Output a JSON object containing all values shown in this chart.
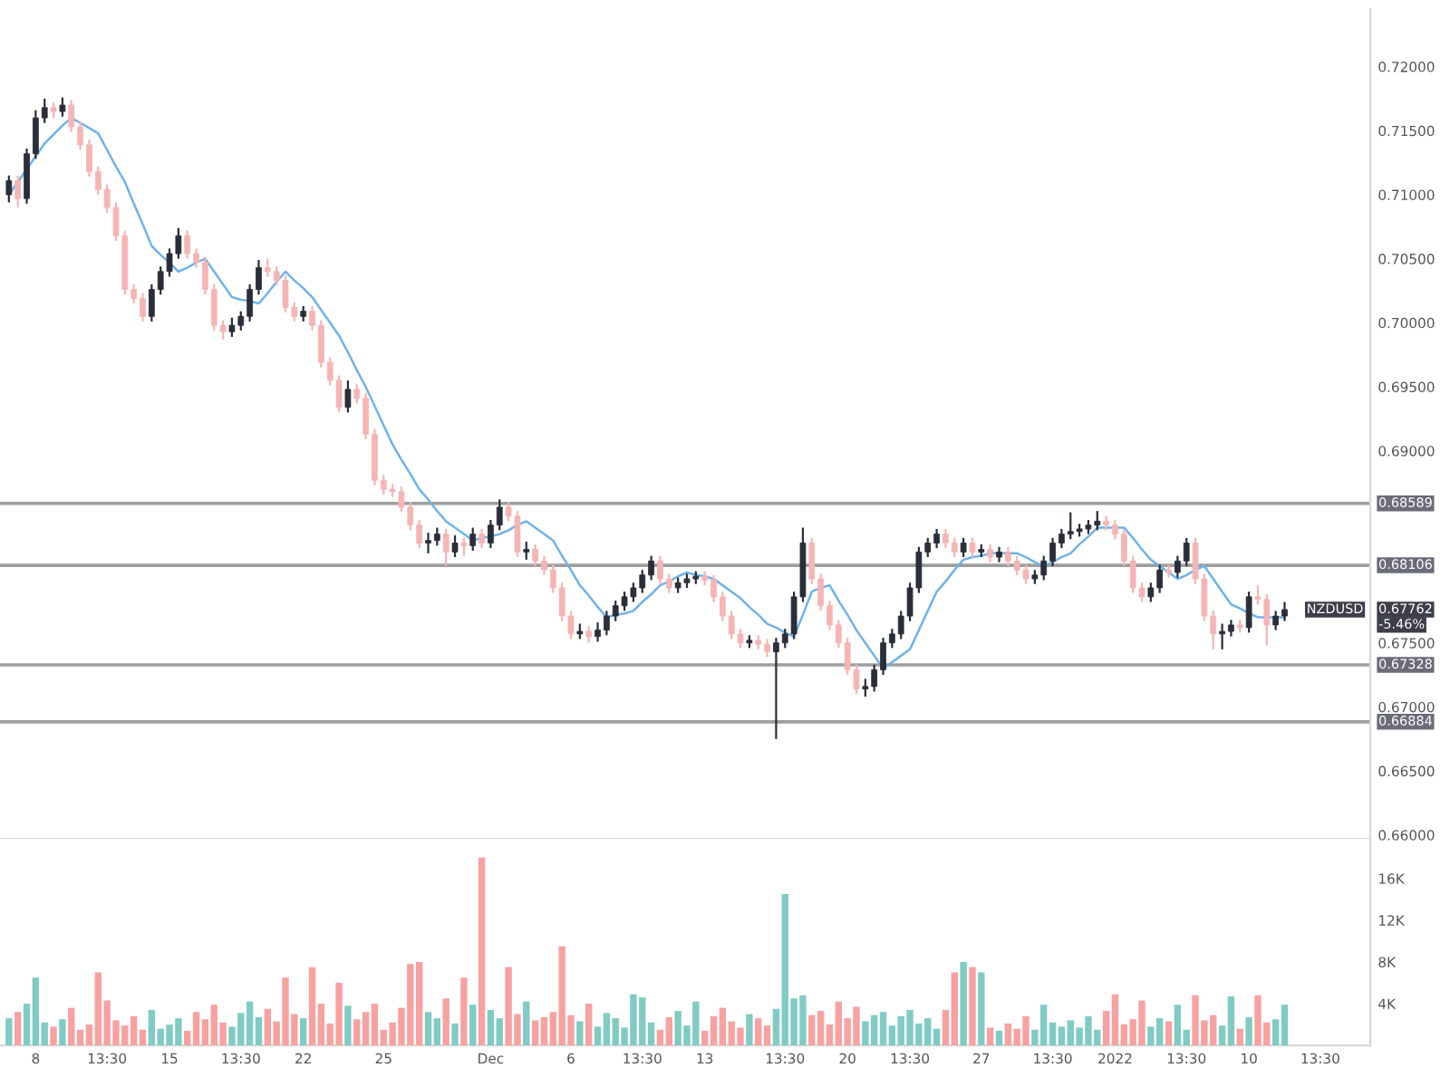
{
  "chart_data": [
    {
      "type": "candlestick",
      "categories": [
        null,
        null,
        null,
        null,
        null,
        null,
        null,
        null,
        null,
        null,
        null,
        null,
        null,
        null,
        null,
        null,
        null,
        null,
        null,
        null,
        null,
        null,
        null,
        null,
        null,
        null,
        null,
        null,
        null,
        null,
        null,
        null,
        null,
        null,
        null,
        null,
        null,
        null,
        null,
        null,
        null,
        null,
        null,
        null,
        null,
        null,
        null,
        null,
        null,
        null,
        null,
        null,
        null,
        null,
        null,
        null,
        null,
        null,
        null,
        null,
        null,
        null,
        null,
        null,
        null,
        null,
        null,
        null,
        null,
        null,
        null,
        null,
        null,
        null,
        null,
        null,
        null,
        null,
        null,
        null,
        null,
        null,
        null,
        null,
        null,
        null,
        null,
        null,
        null,
        null,
        null,
        null,
        null,
        null,
        null,
        null,
        null,
        null,
        null,
        null,
        null,
        null,
        null,
        null,
        null,
        null,
        null,
        null,
        null,
        null,
        null,
        null,
        null,
        null,
        null,
        null,
        null,
        null,
        null,
        null,
        null,
        null,
        null,
        null,
        null,
        null,
        null,
        null,
        null,
        null,
        null,
        null,
        null,
        null,
        null,
        null,
        null,
        null,
        null,
        null,
        null,
        null,
        null,
        null,
        null,
        null,
        null,
        null
      ],
      "ohlc": [
        [
          0.71,
          0.7115,
          0.7094,
          0.7111
        ],
        [
          0.7111,
          0.7115,
          0.709,
          0.7097
        ],
        [
          0.7097,
          0.7136,
          0.7093,
          0.7132
        ],
        [
          0.7132,
          0.7166,
          0.7128,
          0.716
        ],
        [
          0.716,
          0.7175,
          0.7156,
          0.7168
        ],
        [
          0.7168,
          0.7172,
          0.716,
          0.7165
        ],
        [
          0.7165,
          0.7176,
          0.7161,
          0.717
        ],
        [
          0.717,
          0.7174,
          0.7149,
          0.7153
        ],
        [
          0.7153,
          0.7157,
          0.7135,
          0.7139
        ],
        [
          0.7139,
          0.7143,
          0.7114,
          0.7118
        ],
        [
          0.7118,
          0.7122,
          0.71,
          0.7104
        ],
        [
          0.7104,
          0.7108,
          0.7086,
          0.709
        ],
        [
          0.709,
          0.7094,
          0.7064,
          0.7068
        ],
        [
          0.7068,
          0.7072,
          0.7022,
          0.7026
        ],
        [
          0.7026,
          0.703,
          0.7015,
          0.7019
        ],
        [
          0.7019,
          0.7023,
          0.7001,
          0.7005
        ],
        [
          0.7005,
          0.703,
          0.7001,
          0.7026
        ],
        [
          0.7026,
          0.7044,
          0.7022,
          0.704
        ],
        [
          0.704,
          0.7058,
          0.7036,
          0.7054
        ],
        [
          0.7054,
          0.7074,
          0.705,
          0.7068
        ],
        [
          0.7068,
          0.7072,
          0.705,
          0.7054
        ],
        [
          0.7054,
          0.7058,
          0.7043,
          0.7047
        ],
        [
          0.7047,
          0.7051,
          0.7022,
          0.7026
        ],
        [
          0.7026,
          0.703,
          0.6994,
          0.6998
        ],
        [
          0.6998,
          0.7002,
          0.6987,
          0.6993
        ],
        [
          0.6993,
          0.7004,
          0.6989,
          0.6998
        ],
        [
          0.6998,
          0.7009,
          0.6994,
          0.7005
        ],
        [
          0.7005,
          0.703,
          0.7001,
          0.7026
        ],
        [
          0.7026,
          0.7049,
          0.7022,
          0.7043
        ],
        [
          0.7043,
          0.705,
          0.7036,
          0.704
        ],
        [
          0.704,
          0.7044,
          0.7029,
          0.7033
        ],
        [
          0.7033,
          0.7037,
          0.7008,
          0.7012
        ],
        [
          0.7012,
          0.7016,
          0.7001,
          0.7005
        ],
        [
          0.7005,
          0.7013,
          0.7001,
          0.7009
        ],
        [
          0.7009,
          0.7013,
          0.6994,
          0.6998
        ],
        [
          0.6998,
          0.7002,
          0.6965,
          0.6969
        ],
        [
          0.6969,
          0.6973,
          0.6951,
          0.6955
        ],
        [
          0.6955,
          0.6959,
          0.693,
          0.6934
        ],
        [
          0.6934,
          0.6955,
          0.693,
          0.6948
        ],
        [
          0.6948,
          0.6952,
          0.6937,
          0.6941
        ],
        [
          0.6941,
          0.6945,
          0.6909,
          0.6913
        ],
        [
          0.6913,
          0.6917,
          0.6873,
          0.6877
        ],
        [
          0.6877,
          0.6881,
          0.6866,
          0.687
        ],
        [
          0.687,
          0.6874,
          0.6864,
          0.6868
        ],
        [
          0.6868,
          0.6872,
          0.6852,
          0.6856
        ],
        [
          0.6856,
          0.686,
          0.6838,
          0.6842
        ],
        [
          0.6842,
          0.6846,
          0.6824,
          0.6828
        ],
        [
          0.6828,
          0.6836,
          0.682,
          0.683
        ],
        [
          0.683,
          0.684,
          0.6826,
          0.6835
        ],
        [
          0.6835,
          0.6839,
          0.681,
          0.6821
        ],
        [
          0.6821,
          0.6834,
          0.6817,
          0.6828
        ],
        [
          0.6828,
          0.6832,
          0.6818,
          0.6826
        ],
        [
          0.6826,
          0.684,
          0.6822,
          0.6835
        ],
        [
          0.6835,
          0.6839,
          0.6824,
          0.6828
        ],
        [
          0.6828,
          0.6846,
          0.6824,
          0.6842
        ],
        [
          0.6842,
          0.6862,
          0.6838,
          0.6856
        ],
        [
          0.6856,
          0.686,
          0.6845,
          0.6849
        ],
        [
          0.6849,
          0.6853,
          0.6817,
          0.6821
        ],
        [
          0.6821,
          0.6829,
          0.6815,
          0.6823
        ],
        [
          0.6823,
          0.6827,
          0.681,
          0.6814
        ],
        [
          0.6814,
          0.6818,
          0.6803,
          0.6807
        ],
        [
          0.6807,
          0.6811,
          0.6789,
          0.6793
        ],
        [
          0.6793,
          0.6797,
          0.6767,
          0.6771
        ],
        [
          0.6771,
          0.6775,
          0.6753,
          0.6757
        ],
        [
          0.6757,
          0.6765,
          0.6753,
          0.6759
        ],
        [
          0.6759,
          0.6763,
          0.675,
          0.6755
        ],
        [
          0.6755,
          0.6766,
          0.6751,
          0.676
        ],
        [
          0.676,
          0.6775,
          0.6756,
          0.6771
        ],
        [
          0.6771,
          0.6783,
          0.6767,
          0.6779
        ],
        [
          0.6779,
          0.679,
          0.6775,
          0.6786
        ],
        [
          0.6786,
          0.6797,
          0.6782,
          0.6793
        ],
        [
          0.6793,
          0.6807,
          0.6789,
          0.6803
        ],
        [
          0.6803,
          0.6818,
          0.6799,
          0.6814
        ],
        [
          0.6814,
          0.6818,
          0.6796,
          0.68
        ],
        [
          0.68,
          0.6804,
          0.6789,
          0.6793
        ],
        [
          0.6793,
          0.6801,
          0.6789,
          0.6797
        ],
        [
          0.6797,
          0.6804,
          0.6793,
          0.68
        ],
        [
          0.68,
          0.6806,
          0.6796,
          0.6802
        ],
        [
          0.6802,
          0.6806,
          0.6795,
          0.6799
        ],
        [
          0.6799,
          0.6803,
          0.6782,
          0.6786
        ],
        [
          0.6786,
          0.679,
          0.6767,
          0.6771
        ],
        [
          0.6771,
          0.6775,
          0.6753,
          0.6757
        ],
        [
          0.6757,
          0.6761,
          0.6746,
          0.675
        ],
        [
          0.675,
          0.6756,
          0.6746,
          0.6752
        ],
        [
          0.6752,
          0.6756,
          0.6745,
          0.6749
        ],
        [
          0.6749,
          0.6753,
          0.6739,
          0.6743
        ],
        [
          0.6743,
          0.6754,
          0.6675,
          0.675
        ],
        [
          0.675,
          0.6761,
          0.6746,
          0.6757
        ],
        [
          0.6757,
          0.679,
          0.6753,
          0.6786
        ],
        [
          0.6786,
          0.684,
          0.6782,
          0.6828
        ],
        [
          0.6828,
          0.6832,
          0.6796,
          0.68
        ],
        [
          0.68,
          0.6804,
          0.6775,
          0.6779
        ],
        [
          0.6779,
          0.6783,
          0.676,
          0.6764
        ],
        [
          0.6764,
          0.6768,
          0.6746,
          0.675
        ],
        [
          0.675,
          0.6754,
          0.6725,
          0.6729
        ],
        [
          0.6729,
          0.6733,
          0.671,
          0.6714
        ],
        [
          0.6714,
          0.6722,
          0.6708,
          0.6716
        ],
        [
          0.6716,
          0.6733,
          0.6712,
          0.6729
        ],
        [
          0.6729,
          0.6754,
          0.6725,
          0.675
        ],
        [
          0.675,
          0.6761,
          0.6746,
          0.6757
        ],
        [
          0.6757,
          0.6775,
          0.6753,
          0.6771
        ],
        [
          0.6771,
          0.6797,
          0.6767,
          0.6793
        ],
        [
          0.6793,
          0.6825,
          0.6789,
          0.6821
        ],
        [
          0.6821,
          0.6832,
          0.6817,
          0.6828
        ],
        [
          0.6828,
          0.6839,
          0.6824,
          0.6835
        ],
        [
          0.6835,
          0.6839,
          0.6824,
          0.6828
        ],
        [
          0.6828,
          0.6832,
          0.6817,
          0.6821
        ],
        [
          0.6821,
          0.6832,
          0.6817,
          0.6828
        ],
        [
          0.6828,
          0.6832,
          0.6817,
          0.6821
        ],
        [
          0.6821,
          0.6827,
          0.6817,
          0.6823
        ],
        [
          0.6823,
          0.6827,
          0.6813,
          0.6817
        ],
        [
          0.6817,
          0.6825,
          0.6813,
          0.6821
        ],
        [
          0.6821,
          0.6825,
          0.681,
          0.6814
        ],
        [
          0.6814,
          0.6818,
          0.6803,
          0.6807
        ],
        [
          0.6807,
          0.6811,
          0.6796,
          0.68
        ],
        [
          0.68,
          0.6807,
          0.6796,
          0.6803
        ],
        [
          0.6803,
          0.6818,
          0.6799,
          0.6814
        ],
        [
          0.6814,
          0.6832,
          0.681,
          0.6828
        ],
        [
          0.6828,
          0.6839,
          0.6824,
          0.6835
        ],
        [
          0.6835,
          0.6852,
          0.6831,
          0.6837
        ],
        [
          0.6837,
          0.6843,
          0.6833,
          0.6839
        ],
        [
          0.6839,
          0.6846,
          0.6835,
          0.6842
        ],
        [
          0.6842,
          0.6853,
          0.6838,
          0.6845
        ],
        [
          0.6845,
          0.6849,
          0.6838,
          0.6842
        ],
        [
          0.6842,
          0.6846,
          0.6831,
          0.6835
        ],
        [
          0.6835,
          0.6839,
          0.681,
          0.6814
        ],
        [
          0.6814,
          0.6818,
          0.6789,
          0.6793
        ],
        [
          0.6793,
          0.6797,
          0.6782,
          0.6786
        ],
        [
          0.6786,
          0.6797,
          0.6782,
          0.6793
        ],
        [
          0.6793,
          0.6811,
          0.6789,
          0.6807
        ],
        [
          0.6807,
          0.6811,
          0.6801,
          0.6805
        ],
        [
          0.6805,
          0.6818,
          0.6801,
          0.6814
        ],
        [
          0.6814,
          0.6832,
          0.681,
          0.6828
        ],
        [
          0.6828,
          0.6832,
          0.6796,
          0.68
        ],
        [
          0.68,
          0.6804,
          0.6767,
          0.6771
        ],
        [
          0.6771,
          0.6775,
          0.6745,
          0.6757
        ],
        [
          0.6757,
          0.6765,
          0.6745,
          0.6759
        ],
        [
          0.6759,
          0.6768,
          0.6755,
          0.6764
        ],
        [
          0.6764,
          0.6768,
          0.6758,
          0.6762
        ],
        [
          0.6762,
          0.679,
          0.6758,
          0.6786
        ],
        [
          0.6786,
          0.6795,
          0.678,
          0.6784
        ],
        [
          0.6784,
          0.6788,
          0.6748,
          0.6764
        ],
        [
          0.6764,
          0.6775,
          0.676,
          0.6771
        ],
        [
          0.6771,
          0.6782,
          0.6767,
          0.6776
        ],
        null,
        null,
        null,
        null
      ],
      "colors": [
        "#2a2e39",
        "#f5b5b5",
        "#2a2e39",
        "#2a2e39",
        "#2a2e39",
        "#f5b5b5",
        "#2a2e39",
        "#f5b5b5",
        "#f5b5b5",
        "#f5b5b5",
        "#f5b5b5",
        "#f5b5b5",
        "#f5b5b5",
        "#f5b5b5",
        "#f5b5b5",
        "#f5b5b5",
        "#2a2e39",
        "#2a2e39",
        "#2a2e39",
        "#2a2e39",
        "#f5b5b5",
        "#f5b5b5",
        "#f5b5b5",
        "#f5b5b5",
        "#f5b5b5",
        "#2a2e39",
        "#2a2e39",
        "#2a2e39",
        "#2a2e39",
        "#f5b5b5",
        "#f5b5b5",
        "#f5b5b5",
        "#f5b5b5",
        "#2a2e39",
        "#f5b5b5",
        "#f5b5b5",
        "#f5b5b5",
        "#f5b5b5",
        "#2a2e39",
        "#f5b5b5",
        "#f5b5b5",
        "#f5b5b5",
        "#f5b5b5",
        "#f5b5b5",
        "#f5b5b5",
        "#f5b5b5",
        "#f5b5b5",
        "#2a2e39",
        "#2a2e39",
        "#f5b5b5",
        "#2a2e39",
        "#f5b5b5",
        "#2a2e39",
        "#f5b5b5",
        "#2a2e39",
        "#2a2e39",
        "#f5b5b5",
        "#f5b5b5",
        "#2a2e39",
        "#f5b5b5",
        "#f5b5b5",
        "#f5b5b5",
        "#f5b5b5",
        "#f5b5b5",
        "#2a2e39",
        "#f5b5b5",
        "#2a2e39",
        "#2a2e39",
        "#2a2e39",
        "#2a2e39",
        "#2a2e39",
        "#2a2e39",
        "#2a2e39",
        "#f5b5b5",
        "#f5b5b5",
        "#2a2e39",
        "#2a2e39",
        "#2a2e39",
        "#f5b5b5",
        "#f5b5b5",
        "#f5b5b5",
        "#f5b5b5",
        "#f5b5b5",
        "#2a2e39",
        "#f5b5b5",
        "#f5b5b5",
        "#2a2e39",
        "#2a2e39",
        "#2a2e39",
        "#2a2e39",
        "#f5b5b5",
        "#f5b5b5",
        "#f5b5b5",
        "#f5b5b5",
        "#f5b5b5",
        "#f5b5b5",
        "#2a2e39",
        "#2a2e39",
        "#2a2e39",
        "#2a2e39",
        "#2a2e39",
        "#2a2e39",
        "#2a2e39",
        "#2a2e39",
        "#2a2e39",
        "#f5b5b5",
        "#f5b5b5",
        "#2a2e39",
        "#f5b5b5",
        "#2a2e39",
        "#f5b5b5",
        "#2a2e39",
        "#f5b5b5",
        "#f5b5b5",
        "#f5b5b5",
        "#2a2e39",
        "#2a2e39",
        "#2a2e39",
        "#2a2e39",
        "#2a2e39",
        "#2a2e39",
        "#2a2e39",
        "#2a2e39",
        "#f5b5b5",
        "#f5b5b5",
        "#f5b5b5",
        "#f5b5b5",
        "#f5b5b5",
        "#2a2e39",
        "#2a2e39",
        "#f5b5b5",
        "#2a2e39",
        "#2a2e39",
        "#f5b5b5",
        "#f5b5b5",
        "#f5b5b5",
        "#2a2e39",
        "#2a2e39",
        "#f5b5b5",
        "#2a2e39",
        "#f5b5b5",
        "#f5b5b5",
        "#2a2e39",
        "#2a2e39",
        null,
        null,
        null,
        null
      ],
      "series": [
        {
          "type": "line",
          "color": "#6fb3e8",
          "values": [
            0.71,
            0.711,
            0.712,
            0.713,
            0.714,
            0.7147,
            0.7154,
            0.716,
            0.7156,
            0.7152,
            0.7148,
            0.7135,
            0.7122,
            0.711,
            0.7093,
            0.7077,
            0.706,
            0.7053,
            0.7047,
            0.704,
            0.7043,
            0.7047,
            0.705,
            0.704,
            0.703,
            0.702,
            0.7018,
            0.7017,
            0.7015,
            0.7023,
            0.7032,
            0.704,
            0.7033,
            0.7027,
            0.702,
            0.701,
            0.7,
            0.699,
            0.6977,
            0.6963,
            0.695,
            0.6935,
            0.692,
            0.6905,
            0.6893,
            0.6882,
            0.687,
            0.6862,
            0.6853,
            0.6845,
            0.684,
            0.6835,
            0.683,
            0.6832,
            0.6833,
            0.6835,
            0.6838,
            0.6842,
            0.6845,
            0.684,
            0.6835,
            0.683,
            0.6818,
            0.6807,
            0.6795,
            0.6787,
            0.6778,
            0.677,
            0.6772,
            0.6773,
            0.6775,
            0.6782,
            0.6788,
            0.6795,
            0.6798,
            0.6802,
            0.6805,
            0.6803,
            0.6802,
            0.68,
            0.6795,
            0.679,
            0.6785,
            0.6778,
            0.6772,
            0.6765,
            0.6762,
            0.6758,
            0.6755,
            0.6772,
            0.679,
            0.6793,
            0.6795,
            0.6783,
            0.6772,
            0.676,
            0.675,
            0.674,
            0.673,
            0.6735,
            0.674,
            0.6745,
            0.676,
            0.6775,
            0.679,
            0.6798,
            0.6807,
            0.6815,
            0.6817,
            0.6818,
            0.682,
            0.682,
            0.682,
            0.682,
            0.6817,
            0.6813,
            0.681,
            0.6813,
            0.6817,
            0.682,
            0.6827,
            0.6833,
            0.684,
            0.684,
            0.684,
            0.684,
            0.6832,
            0.6823,
            0.6815,
            0.681,
            0.6805,
            0.68,
            0.6803,
            0.6807,
            0.681,
            0.68,
            0.679,
            0.678,
            0.6777,
            0.6773,
            0.677,
            0.677,
            0.677,
            0.677,
            null,
            null,
            null,
            null
          ]
        }
      ],
      "ylim": [
        0.6597,
        0.7245
      ],
      "yticks": [
        {
          "value": 0.66,
          "label": "0.66000"
        },
        {
          "value": 0.665,
          "label": "0.66500"
        },
        {
          "value": 0.67,
          "label": "0.67000"
        },
        {
          "value": 0.675,
          "label": "0.67500"
        },
        {
          "value": 0.69,
          "label": "0.69000"
        },
        {
          "value": 0.695,
          "label": "0.69500"
        },
        {
          "value": 0.7,
          "label": "0.70000"
        },
        {
          "value": 0.705,
          "label": "0.70500"
        },
        {
          "value": 0.71,
          "label": "0.71000"
        },
        {
          "value": 0.715,
          "label": "0.71500"
        },
        {
          "value": 0.72,
          "label": "0.72000"
        }
      ],
      "ref_lines": [
        {
          "axis": "y",
          "value": 0.68589,
          "label": "0.68589",
          "color": "#9e9e9e"
        },
        {
          "axis": "y",
          "value": 0.68106,
          "label": "0.68106",
          "color": "#9e9e9e"
        },
        {
          "axis": "y",
          "value": 0.67328,
          "label": "0.67328",
          "color": "#9e9e9e"
        },
        {
          "axis": "y",
          "value": 0.66884,
          "label": "0.66884",
          "color": "#9e9e9e"
        }
      ],
      "annotations": [
        "NZDUSD",
        "0.67762",
        "-5.46%"
      ],
      "tick_labels": "y"
    },
    {
      "type": "bar",
      "categories": [
        null,
        null,
        null,
        "8",
        null,
        null,
        null,
        null,
        null,
        null,
        null,
        "13:30",
        null,
        null,
        null,
        null,
        null,
        null,
        "15",
        null,
        null,
        null,
        null,
        null,
        null,
        null,
        "13:30",
        null,
        null,
        null,
        null,
        null,
        null,
        "22",
        null,
        null,
        null,
        null,
        null,
        null,
        null,
        null,
        "25",
        null,
        null,
        null,
        null,
        null,
        null,
        null,
        null,
        null,
        null,
        null,
        "Dec",
        null,
        null,
        null,
        null,
        null,
        null,
        null,
        null,
        "6",
        null,
        null,
        null,
        null,
        null,
        null,
        null,
        "13:30",
        null,
        null,
        null,
        null,
        null,
        null,
        "13",
        null,
        null,
        null,
        null,
        null,
        null,
        null,
        null,
        "13:30",
        null,
        null,
        null,
        null,
        null,
        null,
        "20",
        null,
        null,
        null,
        null,
        null,
        null,
        "13:30",
        null,
        null,
        null,
        null,
        null,
        null,
        null,
        "27",
        null,
        null,
        null,
        null,
        null,
        null,
        null,
        "13:30",
        null,
        null,
        null,
        null,
        null,
        null,
        "2022",
        null,
        null,
        null,
        null,
        null,
        null,
        null,
        "13:30",
        null,
        null,
        null,
        null,
        null,
        null,
        "10",
        null,
        null,
        null,
        null,
        null,
        null,
        null,
        "13:30"
      ],
      "values": [
        2600,
        3200,
        4000,
        6500,
        2200,
        1800,
        2500,
        3600,
        1500,
        2000,
        7000,
        4300,
        2400,
        1900,
        2800,
        1500,
        3400,
        1600,
        2000,
        2600,
        1400,
        3200,
        2500,
        3900,
        2200,
        1800,
        3100,
        4200,
        2700,
        3500,
        2300,
        6500,
        3000,
        2600,
        7500,
        4000,
        2100,
        6000,
        3800,
        2500,
        3200,
        4000,
        1500,
        2200,
        3600,
        7800,
        8000,
        3200,
        2600,
        4500,
        2100,
        6500,
        3900,
        18000,
        3400,
        2600,
        7500,
        3000,
        4200,
        2400,
        2700,
        3200,
        9500,
        2900,
        2300,
        4000,
        1800,
        3100,
        2600,
        1700,
        4900,
        4600,
        2200,
        1500,
        2700,
        3300,
        1900,
        4200,
        1400,
        2800,
        3600,
        2300,
        1700,
        3000,
        2600,
        1900,
        3500,
        14500,
        4500,
        4800,
        2900,
        3300,
        2000,
        4200,
        2600,
        3700,
        2300,
        2900,
        3200,
        1900,
        2800,
        3400,
        2100,
        2600,
        1600,
        3400,
        7000,
        8000,
        7500,
        7000,
        1700,
        1400,
        2100,
        1600,
        2800,
        1500,
        3900,
        2200,
        1800,
        2400,
        1700,
        2800,
        1500,
        3300,
        4900,
        2000,
        2500,
        4300,
        1800,
        2600,
        2300,
        3900,
        1500,
        4800,
        2400,
        2900,
        1900,
        4700,
        1600,
        2700,
        4800,
        2200,
        2500,
        3900,
        null,
        null,
        null,
        null
      ],
      "colors": [
        "#80cbc4",
        "#f7a1a1",
        "#80cbc4",
        "#80cbc4",
        "#80cbc4",
        "#f7a1a1",
        "#80cbc4",
        "#f7a1a1",
        "#f7a1a1",
        "#f7a1a1",
        "#f7a1a1",
        "#f7a1a1",
        "#f7a1a1",
        "#f7a1a1",
        "#f7a1a1",
        "#f7a1a1",
        "#80cbc4",
        "#80cbc4",
        "#80cbc4",
        "#80cbc4",
        "#f7a1a1",
        "#f7a1a1",
        "#f7a1a1",
        "#f7a1a1",
        "#f7a1a1",
        "#80cbc4",
        "#80cbc4",
        "#80cbc4",
        "#80cbc4",
        "#f7a1a1",
        "#f7a1a1",
        "#f7a1a1",
        "#f7a1a1",
        "#80cbc4",
        "#f7a1a1",
        "#f7a1a1",
        "#f7a1a1",
        "#f7a1a1",
        "#80cbc4",
        "#f7a1a1",
        "#f7a1a1",
        "#f7a1a1",
        "#f7a1a1",
        "#f7a1a1",
        "#f7a1a1",
        "#f7a1a1",
        "#f7a1a1",
        "#80cbc4",
        "#80cbc4",
        "#f7a1a1",
        "#80cbc4",
        "#f7a1a1",
        "#80cbc4",
        "#f7a1a1",
        "#80cbc4",
        "#80cbc4",
        "#f7a1a1",
        "#f7a1a1",
        "#80cbc4",
        "#f7a1a1",
        "#f7a1a1",
        "#f7a1a1",
        "#f7a1a1",
        "#f7a1a1",
        "#80cbc4",
        "#f7a1a1",
        "#80cbc4",
        "#80cbc4",
        "#80cbc4",
        "#80cbc4",
        "#80cbc4",
        "#80cbc4",
        "#80cbc4",
        "#f7a1a1",
        "#f7a1a1",
        "#80cbc4",
        "#80cbc4",
        "#80cbc4",
        "#f7a1a1",
        "#f7a1a1",
        "#f7a1a1",
        "#f7a1a1",
        "#f7a1a1",
        "#80cbc4",
        "#f7a1a1",
        "#f7a1a1",
        "#80cbc4",
        "#80cbc4",
        "#80cbc4",
        "#80cbc4",
        "#f7a1a1",
        "#f7a1a1",
        "#f7a1a1",
        "#f7a1a1",
        "#f7a1a1",
        "#f7a1a1",
        "#80cbc4",
        "#80cbc4",
        "#80cbc4",
        "#80cbc4",
        "#80cbc4",
        "#80cbc4",
        "#80cbc4",
        "#80cbc4",
        "#80cbc4",
        "#f7a1a1",
        "#f7a1a1",
        "#80cbc4",
        "#f7a1a1",
        "#80cbc4",
        "#f7a1a1",
        "#80cbc4",
        "#f7a1a1",
        "#f7a1a1",
        "#f7a1a1",
        "#80cbc4",
        "#80cbc4",
        "#80cbc4",
        "#80cbc4",
        "#80cbc4",
        "#80cbc4",
        "#80cbc4",
        "#80cbc4",
        "#f7a1a1",
        "#f7a1a1",
        "#f7a1a1",
        "#f7a1a1",
        "#f7a1a1",
        "#80cbc4",
        "#80cbc4",
        "#f7a1a1",
        "#80cbc4",
        "#80cbc4",
        "#f7a1a1",
        "#f7a1a1",
        "#f7a1a1",
        "#80cbc4",
        "#80cbc4",
        "#f7a1a1",
        "#80cbc4",
        "#f7a1a1",
        "#f7a1a1",
        "#80cbc4",
        "#80cbc4",
        null,
        null,
        null,
        null
      ],
      "ylim": [
        0,
        19800
      ],
      "yticks": [
        {
          "value": 4000,
          "label": "4K"
        },
        {
          "value": 8000,
          "label": "8K"
        },
        {
          "value": 12000,
          "label": "12K"
        },
        {
          "value": 16000,
          "label": "16K"
        }
      ]
    }
  ]
}
